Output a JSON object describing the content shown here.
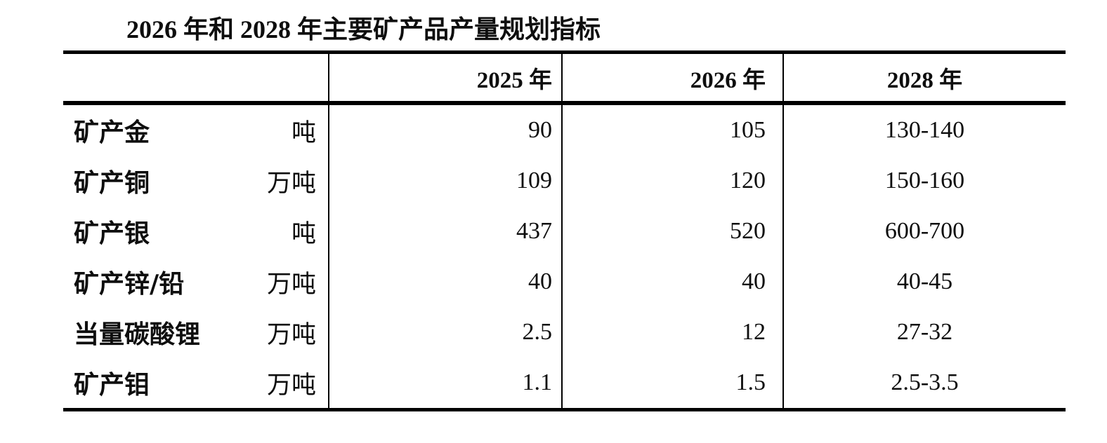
{
  "title": "2026 年和 2028 年主要矿产品产量规划指标",
  "table": {
    "columns": [
      "",
      "2025 年",
      "2026 年",
      "2028 年"
    ],
    "rows": [
      {
        "name": "矿产金",
        "unit": "吨",
        "y2025": "90",
        "y2026": "105",
        "y2028": "130-140"
      },
      {
        "name": "矿产铜",
        "unit": "万吨",
        "y2025": "109",
        "y2026": "120",
        "y2028": "150-160"
      },
      {
        "name": "矿产银",
        "unit": "吨",
        "y2025": "437",
        "y2026": "520",
        "y2028": "600-700"
      },
      {
        "name": "矿产锌/铅",
        "unit": "万吨",
        "y2025": "40",
        "y2026": "40",
        "y2028": "40-45"
      },
      {
        "name": "当量碳酸锂",
        "unit": "万吨",
        "y2025": "2.5",
        "y2026": "12",
        "y2028": "27-32"
      },
      {
        "name": "矿产钼",
        "unit": "万吨",
        "y2025": "1.1",
        "y2026": "1.5",
        "y2028": "2.5-3.5"
      }
    ]
  },
  "colors": {
    "text": "#0e0e0e",
    "rule": "#000000",
    "background": "#ffffff"
  }
}
